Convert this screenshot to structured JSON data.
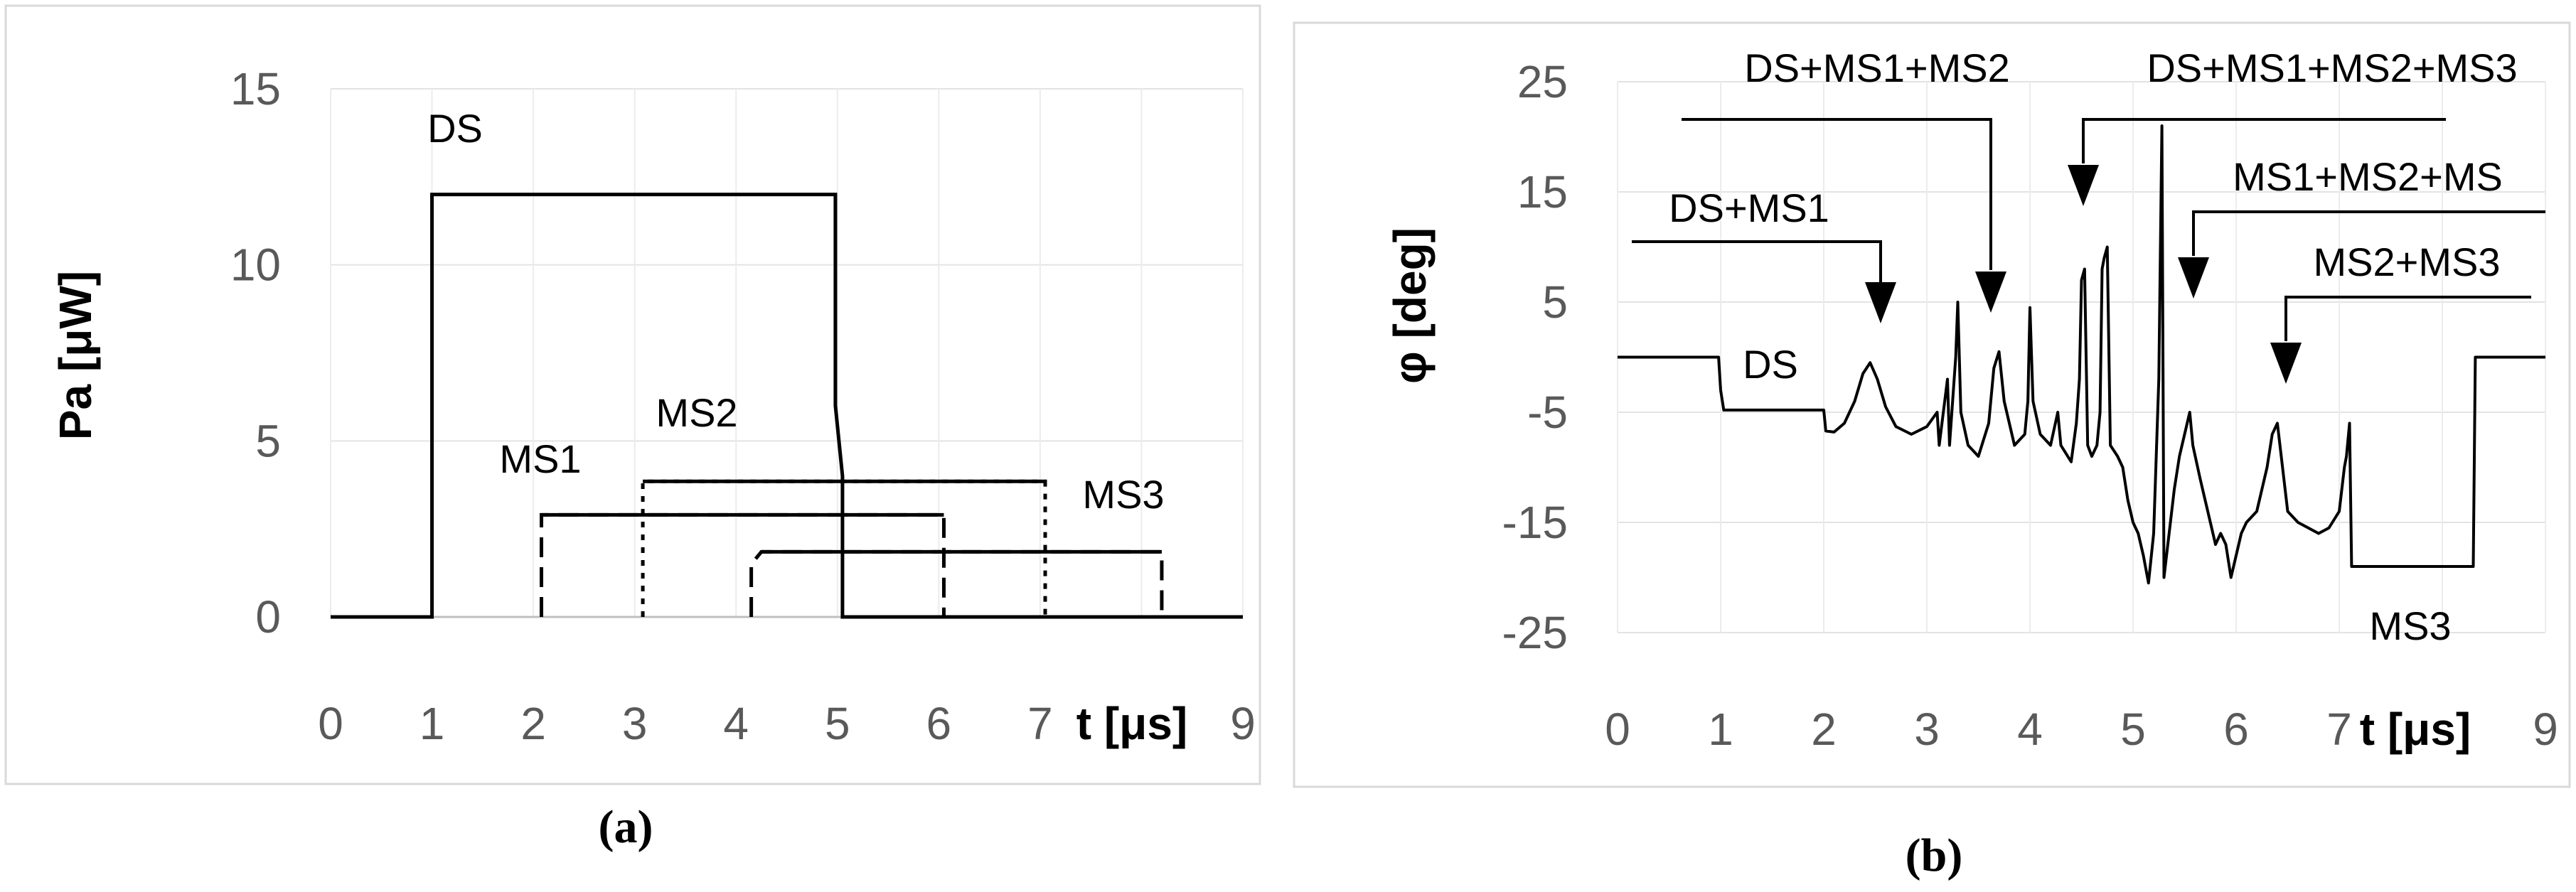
{
  "chart_data": [
    {
      "panel": "a",
      "type": "line",
      "caption": "(a)",
      "ylabel": "Pa [μW]",
      "xlabel": "t [μs]",
      "xticks": [
        "0",
        "1",
        "2",
        "3",
        "4",
        "5",
        "6",
        "7",
        "9"
      ],
      "yticks": [
        "0",
        "5",
        "10",
        "15"
      ],
      "xlim": [
        0,
        9
      ],
      "ylim": [
        0,
        15
      ],
      "grid": true,
      "series": [
        {
          "name": "DS",
          "style": "solid",
          "points": [
            [
              0,
              0
            ],
            [
              1,
              0
            ],
            [
              1,
              12
            ],
            [
              4.98,
              12
            ],
            [
              4.98,
              6
            ],
            [
              5.05,
              4
            ],
            [
              5.05,
              0
            ],
            [
              9,
              0
            ]
          ]
        },
        {
          "name": "MS1",
          "style": "dashed",
          "points": [
            [
              2.08,
              0
            ],
            [
              2.08,
              2.9
            ],
            [
              6.05,
              2.9
            ],
            [
              6.05,
              0
            ]
          ]
        },
        {
          "name": "MS2",
          "style": "dotted",
          "points": [
            [
              3.08,
              0
            ],
            [
              3.08,
              3.85
            ],
            [
              7.05,
              3.85
            ],
            [
              7.05,
              0
            ]
          ]
        },
        {
          "name": "MS3",
          "style": "dashed",
          "points": [
            [
              4.15,
              0
            ],
            [
              4.15,
              1.5
            ],
            [
              4.25,
              1.85
            ],
            [
              8.2,
              1.85
            ],
            [
              8.2,
              0
            ]
          ]
        }
      ],
      "labels": [
        "DS",
        "MS1",
        "MS2",
        "MS3"
      ]
    },
    {
      "panel": "b",
      "type": "line",
      "caption": "(b)",
      "ylabel": "φ  [deg]",
      "xlabel": "t [μs]",
      "xticks": [
        "0",
        "1",
        "2",
        "3",
        "4",
        "5",
        "6",
        "7",
        "9"
      ],
      "yticks": [
        "-25",
        "-15",
        "-5",
        "5",
        "15",
        "25"
      ],
      "xlim": [
        0,
        9
      ],
      "ylim": [
        -25,
        25
      ],
      "grid": true,
      "series": [
        {
          "name": "phase",
          "points": [
            [
              0,
              0
            ],
            [
              0.98,
              0
            ],
            [
              1.0,
              -3
            ],
            [
              1.03,
              -4.8
            ],
            [
              2.0,
              -4.8
            ],
            [
              2.02,
              -6.7
            ],
            [
              2.1,
              -6.8
            ],
            [
              2.2,
              -6
            ],
            [
              2.3,
              -4
            ],
            [
              2.38,
              -1.5
            ],
            [
              2.45,
              -0.5
            ],
            [
              2.52,
              -2
            ],
            [
              2.6,
              -4.5
            ],
            [
              2.7,
              -6.3
            ],
            [
              2.85,
              -7
            ],
            [
              3.0,
              -6.3
            ],
            [
              3.1,
              -5
            ],
            [
              3.12,
              -8
            ],
            [
              3.2,
              -2
            ],
            [
              3.22,
              -8
            ],
            [
              3.28,
              0
            ],
            [
              3.3,
              5
            ],
            [
              3.33,
              -5
            ],
            [
              3.4,
              -8
            ],
            [
              3.5,
              -9
            ],
            [
              3.6,
              -6
            ],
            [
              3.65,
              -1
            ],
            [
              3.7,
              0.5
            ],
            [
              3.75,
              -4
            ],
            [
              3.85,
              -8
            ],
            [
              3.95,
              -7
            ],
            [
              3.98,
              -4
            ],
            [
              4.0,
              4.5
            ],
            [
              4.03,
              -4
            ],
            [
              4.1,
              -7
            ],
            [
              4.2,
              -8
            ],
            [
              4.27,
              -5
            ],
            [
              4.3,
              -8
            ],
            [
              4.4,
              -9.5
            ],
            [
              4.45,
              -6
            ],
            [
              4.48,
              -2
            ],
            [
              4.5,
              7
            ],
            [
              4.53,
              8
            ],
            [
              4.56,
              -8
            ],
            [
              4.6,
              -9
            ],
            [
              4.65,
              -8
            ],
            [
              4.68,
              -5
            ],
            [
              4.7,
              8
            ],
            [
              4.72,
              9
            ],
            [
              4.75,
              10
            ],
            [
              4.78,
              -8
            ],
            [
              4.85,
              -9
            ],
            [
              4.9,
              -10
            ],
            [
              4.95,
              -13
            ],
            [
              5.0,
              -15
            ],
            [
              5.05,
              -16
            ],
            [
              5.1,
              -18
            ],
            [
              5.15,
              -20.5
            ],
            [
              5.2,
              -16
            ],
            [
              5.25,
              -2
            ],
            [
              5.28,
              21
            ],
            [
              5.3,
              -20
            ],
            [
              5.35,
              -16
            ],
            [
              5.4,
              -12
            ],
            [
              5.45,
              -9
            ],
            [
              5.5,
              -7
            ],
            [
              5.55,
              -5
            ],
            [
              5.58,
              -8
            ],
            [
              5.65,
              -11
            ],
            [
              5.7,
              -13
            ],
            [
              5.75,
              -15
            ],
            [
              5.8,
              -17
            ],
            [
              5.85,
              -16
            ],
            [
              5.9,
              -17
            ],
            [
              5.95,
              -20
            ],
            [
              6.0,
              -18
            ],
            [
              6.05,
              -16
            ],
            [
              6.1,
              -15
            ],
            [
              6.2,
              -14
            ],
            [
              6.3,
              -10
            ],
            [
              6.35,
              -7
            ],
            [
              6.4,
              -6
            ],
            [
              6.45,
              -10
            ],
            [
              6.5,
              -14
            ],
            [
              6.6,
              -15
            ],
            [
              6.8,
              -16
            ],
            [
              6.9,
              -15.5
            ],
            [
              7.0,
              -14
            ],
            [
              7.05,
              -10
            ],
            [
              7.07,
              -9
            ],
            [
              7.1,
              -6
            ],
            [
              7.12,
              -19
            ],
            [
              8.3,
              -19
            ],
            [
              8.32,
              0
            ],
            [
              9,
              0
            ]
          ]
        }
      ],
      "annotations": [
        "DS",
        "DS+MS1",
        "DS+MS1+MS2",
        "DS+MS1+MS2+MS3",
        "MS1+MS2+MS",
        "MS2+MS3",
        "MS3"
      ]
    }
  ]
}
